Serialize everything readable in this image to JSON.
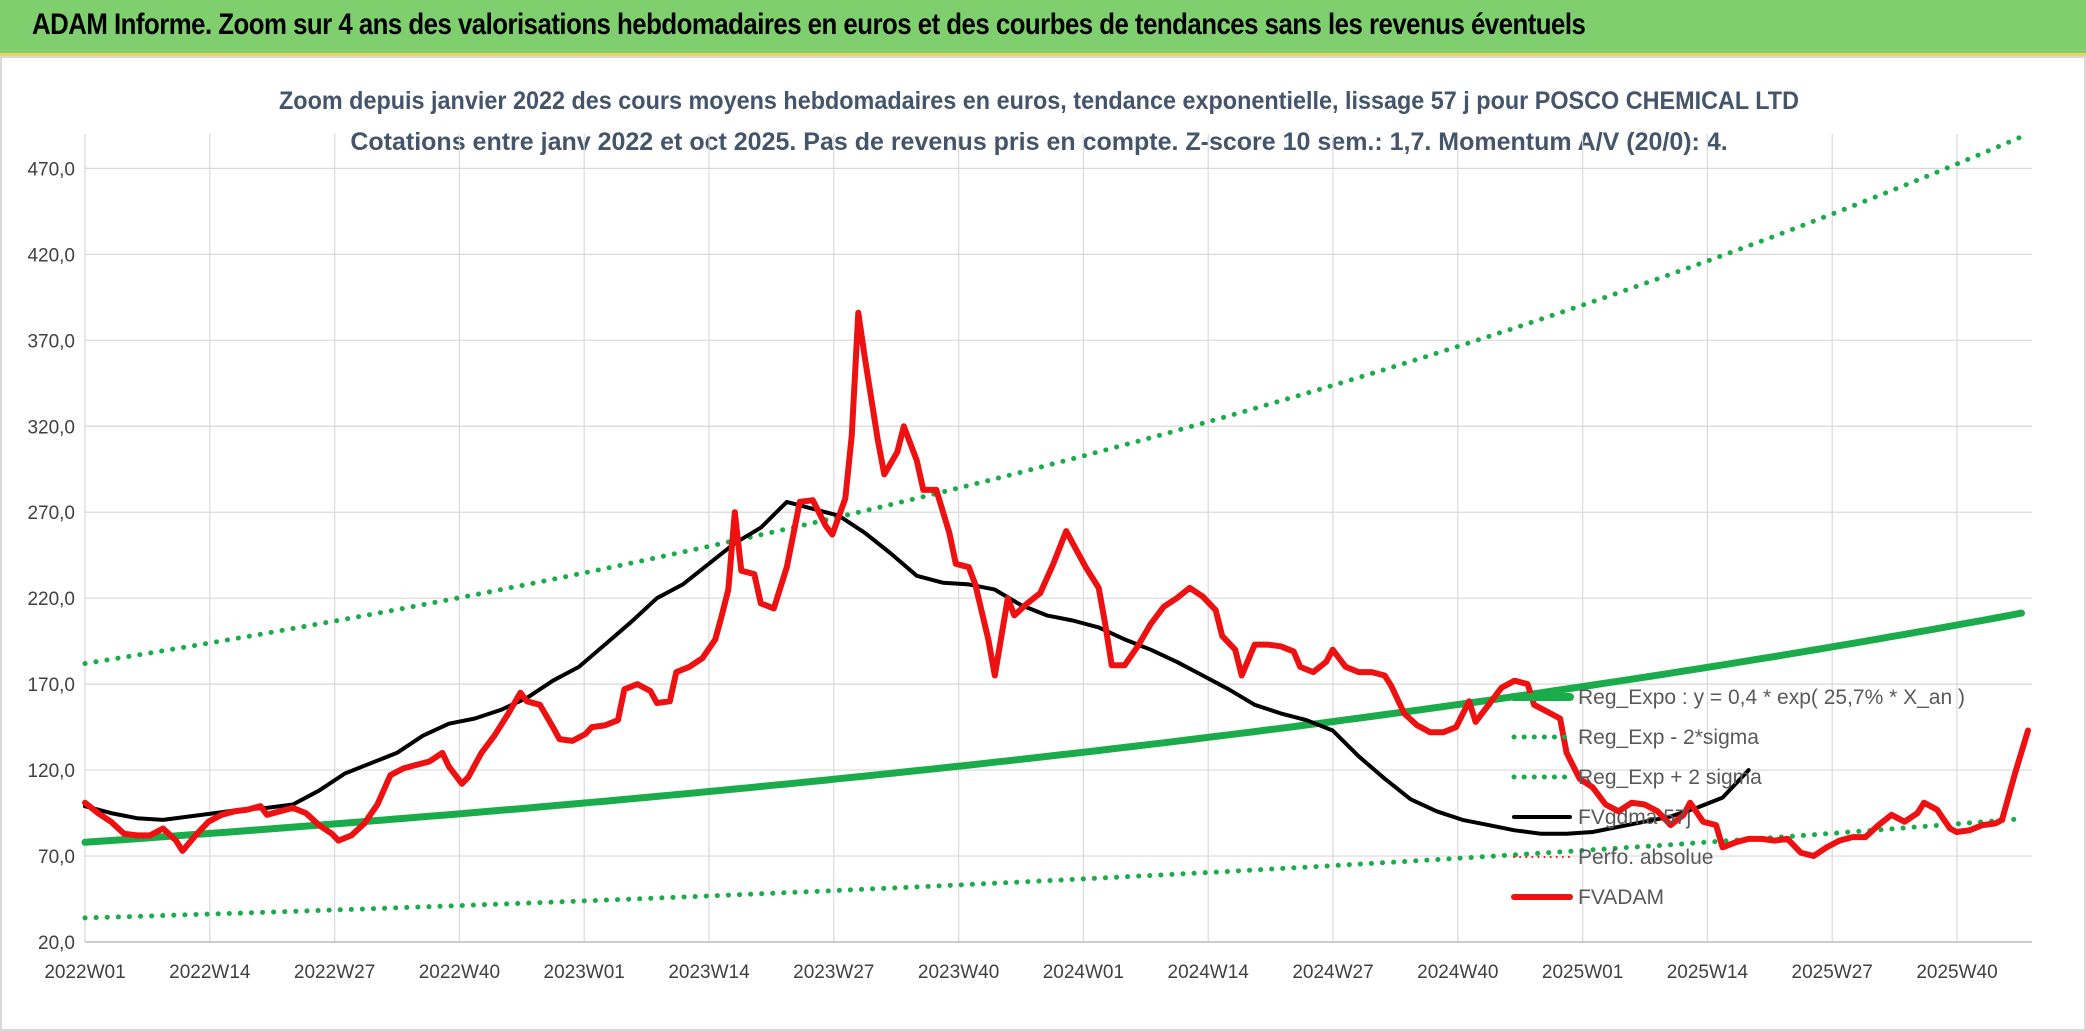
{
  "banner": {
    "title": "ADAM Informe. Zoom sur 4 ans des valorisations hebdomadaires en euros et des courbes de tendances sans les revenus éventuels"
  },
  "colors": {
    "banner_bg": "#7fcf6f",
    "trend_green": "#1aab4a",
    "smooth_black": "#000000",
    "price_red": "#ee1111",
    "grid": "#d9d9d9"
  },
  "chart_data": {
    "type": "line",
    "title": "Zoom depuis janvier 2022 des cours moyens hebdomadaires en euros, tendance exponentielle, lissage 57 j pour POSCO CHEMICAL LTD",
    "subtitle": "Cotations entre janv 2022 et oct 2025. Pas de revenus pris en compte. Z-score 10 sem.: 1,7. Momentum A/V (20/0): 4.",
    "ylim": [
      20,
      490
    ],
    "yticks": [
      "20,0",
      "70,0",
      "120,0",
      "170,0",
      "220,0",
      "270,0",
      "320,0",
      "370,0",
      "420,0",
      "470,0"
    ],
    "ytick_values": [
      20,
      70,
      120,
      170,
      220,
      270,
      320,
      370,
      420,
      470
    ],
    "xticks": [
      "2022W01",
      "2022W14",
      "2022W27",
      "2022W40",
      "2023W01",
      "2023W14",
      "2023W27",
      "2023W40",
      "2024W01",
      "2024W14",
      "2024W27",
      "2024W40",
      "2025W01",
      "2025W14",
      "2025W27",
      "2025W40"
    ],
    "x_week_count": 197,
    "legend": [
      "Reg_Expo : y = 0,4 * exp( 25,7% *  X_an )",
      "Reg_Exp - 2*sigma",
      "Reg_Exp + 2 sigma",
      "FVgdma 57j",
      "Perfo. absolue",
      "FVADAM"
    ],
    "series": [
      {
        "name": "Reg_Expo",
        "style": "solid",
        "anchors": [
          [
            0,
            78
          ],
          [
            196,
            212
          ]
        ]
      },
      {
        "name": "Reg_Exp - 2*sigma",
        "style": "dotted",
        "anchors": [
          [
            0,
            34
          ],
          [
            196,
            92
          ]
        ]
      },
      {
        "name": "Reg_Exp + 2 sigma",
        "style": "dotted",
        "anchors": [
          [
            0,
            182
          ],
          [
            196,
            490
          ]
        ]
      },
      {
        "name": "FVgdma 57j",
        "style": "solid",
        "points": [
          [
            0,
            99
          ],
          [
            4,
            95
          ],
          [
            8,
            92
          ],
          [
            12,
            91
          ],
          [
            16,
            93
          ],
          [
            20,
            95
          ],
          [
            24,
            97
          ],
          [
            28,
            98
          ],
          [
            32,
            100
          ],
          [
            36,
            108
          ],
          [
            40,
            118
          ],
          [
            44,
            124
          ],
          [
            48,
            130
          ],
          [
            52,
            140
          ],
          [
            56,
            147
          ],
          [
            60,
            150
          ],
          [
            64,
            155
          ],
          [
            68,
            162
          ],
          [
            72,
            172
          ],
          [
            76,
            180
          ],
          [
            80,
            193
          ],
          [
            84,
            206
          ],
          [
            88,
            220
          ],
          [
            92,
            228
          ],
          [
            96,
            240
          ],
          [
            100,
            252
          ],
          [
            104,
            261
          ],
          [
            108,
            276
          ],
          [
            112,
            272
          ],
          [
            116,
            268
          ],
          [
            120,
            258
          ],
          [
            124,
            246
          ],
          [
            128,
            233
          ],
          [
            132,
            229
          ],
          [
            136,
            228
          ],
          [
            140,
            225
          ],
          [
            144,
            216
          ],
          [
            148,
            210
          ],
          [
            152,
            207
          ],
          [
            156,
            203
          ],
          [
            160,
            196
          ],
          [
            164,
            190
          ],
          [
            168,
            183
          ],
          [
            172,
            175
          ],
          [
            176,
            167
          ],
          [
            180,
            158
          ],
          [
            184,
            153
          ],
          [
            188,
            149
          ],
          [
            192,
            143
          ],
          [
            196,
            128
          ],
          [
            200,
            115
          ],
          [
            204,
            103
          ],
          [
            208,
            96
          ],
          [
            212,
            91
          ],
          [
            216,
            88
          ],
          [
            220,
            85
          ],
          [
            224,
            83
          ],
          [
            228,
            83
          ],
          [
            232,
            84
          ],
          [
            236,
            87
          ],
          [
            240,
            90
          ],
          [
            244,
            93
          ],
          [
            248,
            98
          ],
          [
            252,
            104
          ],
          [
            256,
            120
          ]
        ]
      },
      {
        "name": "FVADAM",
        "style": "solid",
        "points": [
          [
            0,
            101
          ],
          [
            2,
            95
          ],
          [
            4,
            90
          ],
          [
            6,
            83
          ],
          [
            8,
            82
          ],
          [
            10,
            82
          ],
          [
            12,
            86
          ],
          [
            14,
            79
          ],
          [
            15,
            73
          ],
          [
            17,
            82
          ],
          [
            19,
            90
          ],
          [
            21,
            94
          ],
          [
            23,
            96
          ],
          [
            25,
            97
          ],
          [
            27,
            99
          ],
          [
            28,
            94
          ],
          [
            30,
            96
          ],
          [
            32,
            98
          ],
          [
            34,
            95
          ],
          [
            36,
            88
          ],
          [
            38,
            83
          ],
          [
            39,
            79
          ],
          [
            41,
            82
          ],
          [
            43,
            89
          ],
          [
            45,
            100
          ],
          [
            47,
            117
          ],
          [
            49,
            121
          ],
          [
            51,
            123
          ],
          [
            53,
            125
          ],
          [
            55,
            130
          ],
          [
            56,
            122
          ],
          [
            58,
            112
          ],
          [
            59,
            116
          ],
          [
            61,
            130
          ],
          [
            63,
            140
          ],
          [
            65,
            152
          ],
          [
            67,
            165
          ],
          [
            68,
            160
          ],
          [
            70,
            158
          ],
          [
            72,
            145
          ],
          [
            73,
            138
          ],
          [
            75,
            137
          ],
          [
            77,
            141
          ],
          [
            78,
            145
          ],
          [
            80,
            146
          ],
          [
            82,
            149
          ],
          [
            83,
            167
          ],
          [
            85,
            170
          ],
          [
            87,
            166
          ],
          [
            88,
            159
          ],
          [
            90,
            160
          ],
          [
            91,
            177
          ],
          [
            93,
            180
          ],
          [
            95,
            185
          ],
          [
            97,
            196
          ],
          [
            98,
            210
          ],
          [
            99,
            225
          ],
          [
            100,
            270
          ],
          [
            101,
            236
          ],
          [
            103,
            234
          ],
          [
            104,
            217
          ],
          [
            106,
            214
          ],
          [
            108,
            238
          ],
          [
            110,
            276
          ],
          [
            112,
            277
          ],
          [
            114,
            262
          ],
          [
            115,
            257
          ],
          [
            117,
            278
          ],
          [
            118,
            315
          ],
          [
            119,
            386
          ],
          [
            120,
            360
          ],
          [
            122,
            312
          ],
          [
            123,
            292
          ],
          [
            125,
            305
          ],
          [
            126,
            320
          ],
          [
            128,
            300
          ],
          [
            129,
            283
          ],
          [
            131,
            283
          ],
          [
            133,
            258
          ],
          [
            134,
            240
          ],
          [
            136,
            238
          ],
          [
            137,
            228
          ],
          [
            139,
            196
          ],
          [
            140,
            175
          ],
          [
            142,
            220
          ],
          [
            143,
            210
          ],
          [
            145,
            217
          ],
          [
            147,
            223
          ],
          [
            149,
            240
          ],
          [
            151,
            259
          ],
          [
            152,
            252
          ],
          [
            154,
            238
          ],
          [
            156,
            226
          ],
          [
            157,
            205
          ],
          [
            158,
            181
          ],
          [
            160,
            181
          ],
          [
            162,
            192
          ],
          [
            164,
            205
          ],
          [
            166,
            215
          ],
          [
            168,
            220
          ],
          [
            170,
            226
          ],
          [
            172,
            221
          ],
          [
            174,
            213
          ],
          [
            175,
            198
          ],
          [
            177,
            190
          ],
          [
            178,
            175
          ],
          [
            180,
            193
          ],
          [
            182,
            193
          ],
          [
            184,
            192
          ],
          [
            186,
            189
          ],
          [
            187,
            180
          ],
          [
            189,
            177
          ],
          [
            191,
            183
          ],
          [
            192,
            190
          ],
          [
            194,
            180
          ],
          [
            196,
            177
          ],
          [
            198,
            177
          ],
          [
            200,
            175
          ],
          [
            201,
            169
          ],
          [
            203,
            153
          ],
          [
            205,
            146
          ],
          [
            207,
            142
          ],
          [
            209,
            142
          ],
          [
            211,
            145
          ],
          [
            213,
            160
          ],
          [
            214,
            148
          ],
          [
            216,
            158
          ],
          [
            218,
            168
          ],
          [
            220,
            172
          ],
          [
            222,
            170
          ],
          [
            223,
            158
          ],
          [
            225,
            154
          ],
          [
            227,
            150
          ],
          [
            228,
            130
          ],
          [
            230,
            115
          ],
          [
            232,
            110
          ],
          [
            234,
            100
          ],
          [
            236,
            96
          ],
          [
            238,
            101
          ],
          [
            240,
            100
          ],
          [
            242,
            96
          ],
          [
            244,
            88
          ],
          [
            246,
            94
          ],
          [
            247,
            101
          ],
          [
            249,
            90
          ],
          [
            251,
            88
          ],
          [
            252,
            75
          ],
          [
            254,
            78
          ],
          [
            256,
            80
          ],
          [
            258,
            80
          ],
          [
            260,
            79
          ],
          [
            262,
            80
          ],
          [
            264,
            72
          ],
          [
            266,
            70
          ],
          [
            268,
            75
          ],
          [
            270,
            79
          ],
          [
            272,
            81
          ],
          [
            274,
            81
          ],
          [
            276,
            88
          ],
          [
            278,
            94
          ],
          [
            280,
            90
          ],
          [
            282,
            95
          ],
          [
            283,
            101
          ],
          [
            285,
            97
          ],
          [
            287,
            86
          ],
          [
            288,
            84
          ],
          [
            290,
            85
          ],
          [
            292,
            88
          ],
          [
            294,
            89
          ],
          [
            295,
            91
          ],
          [
            297,
            118
          ],
          [
            299,
            143
          ]
        ]
      }
    ]
  }
}
